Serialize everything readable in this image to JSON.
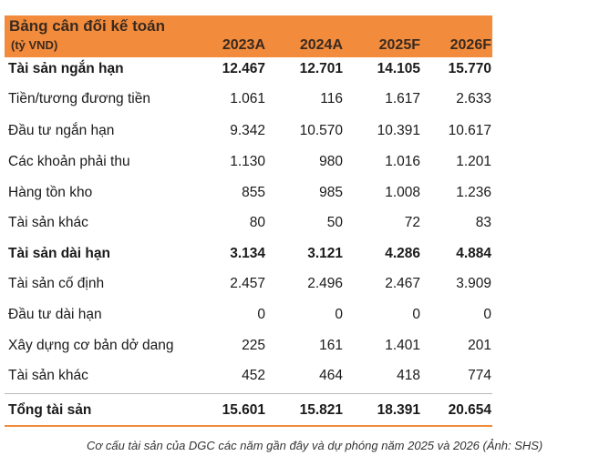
{
  "table": {
    "title": "Bảng cân đối kế toán",
    "unit": "(tỷ VND)",
    "columns": [
      "2023A",
      "2024A",
      "2025F",
      "2026F"
    ],
    "rows": [
      {
        "label": "Tài sản ngắn hạn",
        "bold": true,
        "values": [
          "12.467",
          "12.701",
          "14.105",
          "15.770"
        ]
      },
      {
        "label": "Tiền/tương đương tiền",
        "bold": false,
        "values": [
          "1.061",
          "116",
          "1.617",
          "2.633"
        ]
      },
      {
        "label": "Đầu tư ngắn hạn",
        "bold": false,
        "values": [
          "9.342",
          "10.570",
          "10.391",
          "10.617"
        ]
      },
      {
        "label": "Các khoản phải thu",
        "bold": false,
        "values": [
          "1.130",
          "980",
          "1.016",
          "1.201"
        ]
      },
      {
        "label": "Hàng tồn kho",
        "bold": false,
        "values": [
          "855",
          "985",
          "1.008",
          "1.236"
        ]
      },
      {
        "label": "Tài sản khác",
        "bold": false,
        "values": [
          "80",
          "50",
          "72",
          "83"
        ]
      },
      {
        "label": "Tài sản dài hạn",
        "bold": true,
        "values": [
          "3.134",
          "3.121",
          "4.286",
          "4.884"
        ]
      },
      {
        "label": "Tài sản cố định",
        "bold": false,
        "values": [
          "2.457",
          "2.496",
          "2.467",
          "3.909"
        ]
      },
      {
        "label": "Đầu tư dài hạn",
        "bold": false,
        "values": [
          "0",
          "0",
          "0",
          "0"
        ]
      },
      {
        "label": "Xây dựng cơ bản dở dang",
        "bold": false,
        "values": [
          "225",
          "161",
          "1.401",
          "201"
        ]
      },
      {
        "label": "Tài sản khác",
        "bold": false,
        "values": [
          "452",
          "464",
          "418",
          "774"
        ]
      },
      {
        "label": "Tổng tài sản",
        "bold": true,
        "values": [
          "15.601",
          "15.821",
          "18.391",
          "20.654"
        ]
      }
    ]
  },
  "caption": "Cơ cấu tài sản của DGC các năm gần đây và dự phóng năm 2025 và 2026 (Ảnh: SHS)"
}
